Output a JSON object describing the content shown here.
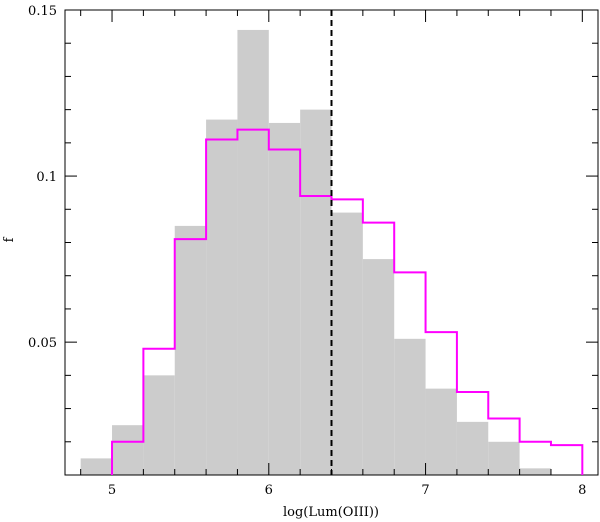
{
  "chart_data": {
    "type": "bar",
    "xlabel": "log(Lum(OIII))",
    "ylabel": "f",
    "xlim": [
      4.7,
      8.1
    ],
    "ylim": [
      0.01,
      0.15
    ],
    "x_ticks": [
      5,
      6,
      7,
      8
    ],
    "x_tick_labels": [
      "5",
      "6",
      "7",
      "8"
    ],
    "y_ticks": [
      0.05,
      0.1,
      0.15
    ],
    "y_tick_labels": [
      "0.05",
      "0.1",
      "0.15"
    ],
    "bin_width": 0.2,
    "series": [
      {
        "style": "filled histogram",
        "color": "#cccccc",
        "bin_starts": [
          4.8,
          5.0,
          5.2,
          5.4,
          5.6,
          5.8,
          6.0,
          6.2,
          6.4,
          6.6,
          6.8,
          7.0,
          7.2,
          7.4,
          7.6
        ],
        "values": [
          0.015,
          0.025,
          0.04,
          0.085,
          0.117,
          0.144,
          0.116,
          0.12,
          0.089,
          0.075,
          0.051,
          0.036,
          0.026,
          0.02,
          0.012
        ]
      },
      {
        "style": "step outline",
        "color": "#ff00ff",
        "bin_starts": [
          5.0,
          5.2,
          5.4,
          5.6,
          5.8,
          6.0,
          6.2,
          6.4,
          6.6,
          6.8,
          7.0,
          7.2,
          7.4,
          7.6,
          7.8
        ],
        "values": [
          0.02,
          0.048,
          0.081,
          0.111,
          0.114,
          0.108,
          0.094,
          0.093,
          0.086,
          0.071,
          0.053,
          0.035,
          0.027,
          0.02,
          0.019
        ]
      }
    ],
    "vline": {
      "x": 6.4,
      "style": "dashed",
      "color": "#000000"
    }
  }
}
